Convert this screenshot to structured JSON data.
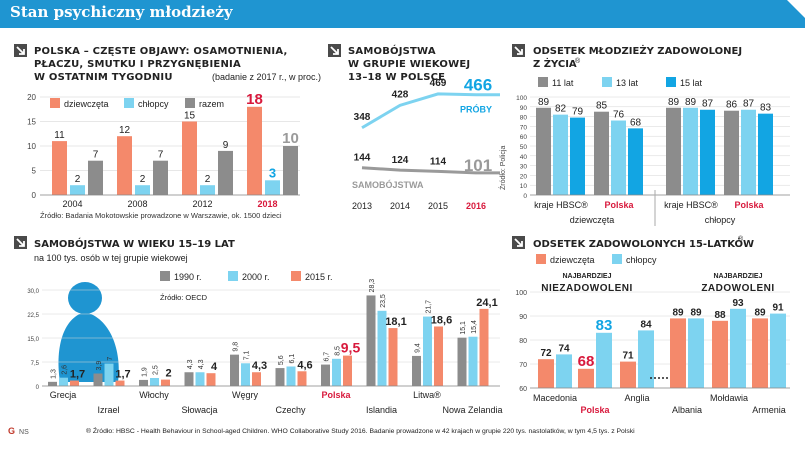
{
  "header": {
    "title": "Stan psychiczny młodzieży"
  },
  "colors": {
    "girls": "#f4896b",
    "boys": "#7dd3f0",
    "total": "#8c8c8c",
    "c11": "#8c8c8c",
    "c13": "#7dd3f0",
    "c15": "#12a5e3",
    "accent": "#d8193c",
    "blue": "#12a5e3"
  },
  "panel1": {
    "title_lines": [
      "Polska – częste objawy: osamotnienia,",
      "płaczu, smutku i przygnębienia",
      "w ostatnim tygodniu"
    ],
    "subtitle": "(badanie z 2017 r., w proc.)",
    "source": "Źródło: Badania Mokotowskie prowadzone w Warszawie, ok. 1500 dzieci",
    "chart_data": {
      "type": "bar",
      "categories": [
        "2004",
        "2008",
        "2012",
        "2018"
      ],
      "series": [
        {
          "name": "dziewczęta",
          "values": [
            11,
            12,
            15,
            18
          ]
        },
        {
          "name": "chłopcy",
          "values": [
            2,
            2,
            2,
            3
          ]
        },
        {
          "name": "razem",
          "values": [
            7,
            7,
            9,
            10
          ]
        }
      ],
      "ylim": [
        0,
        20
      ],
      "yticks": [
        "0",
        "5",
        "10",
        "15",
        "20"
      ],
      "grid": true,
      "legend": "top"
    }
  },
  "panel2": {
    "title_lines": [
      "Samobójstwa",
      "w grupie wiekowej",
      "13–18 w Polsce"
    ],
    "source": "Źródło: Policja",
    "chart_data": {
      "type": "line",
      "x": [
        "2013",
        "2014",
        "2015",
        "2016"
      ],
      "series": [
        {
          "name": "PRÓBY",
          "values": [
            348,
            428,
            469,
            466
          ]
        },
        {
          "name": "SAMOBÓJSTWA",
          "values": [
            144,
            124,
            114,
            101
          ]
        }
      ],
      "labels": [
        "348",
        "428",
        "469",
        "466",
        "144",
        "124",
        "114",
        "101"
      ]
    }
  },
  "panel3": {
    "title_lines": [
      "Odsetek młodzieży zadowolonej",
      "z życia"
    ],
    "title_mark": "®",
    "chart_data": {
      "type": "bar",
      "legend_entries": [
        "11 lat",
        "13 lat",
        "15 lat"
      ],
      "groups": [
        {
          "label": "kraje HBSC®",
          "values": [
            89,
            82,
            79
          ]
        },
        {
          "label": "Polska",
          "values": [
            85,
            76,
            68
          ]
        },
        {
          "label": "kraje HBSC®",
          "values": [
            89,
            89,
            87
          ]
        },
        {
          "label": "Polska",
          "values": [
            86,
            87,
            83
          ]
        }
      ],
      "sections": [
        "dziewczęta",
        "chłopcy"
      ],
      "ylim": [
        0,
        100
      ],
      "yticks": [
        "0",
        "10",
        "20",
        "30",
        "40",
        "50",
        "60",
        "70",
        "80",
        "90",
        "100"
      ],
      "grid": true
    }
  },
  "panel4": {
    "title": "Samobójstwa w wieku 15–19 lat",
    "subtitle": "na 100 tys. osób w tej grupie wiekowej",
    "source": "Źródło: OECD",
    "chart_data": {
      "type": "bar",
      "categories": [
        "Grecja",
        "Izrael",
        "Włochy",
        "Słowacja",
        "Węgry",
        "Czechy",
        "Polska",
        "Islandia",
        "Litwa",
        "Nowa Zelandia"
      ],
      "category_marks": [
        "",
        "",
        "",
        "",
        "",
        "",
        "",
        "",
        "®",
        ""
      ],
      "series": [
        {
          "name": "1990 r.",
          "values": [
            1.3,
            3.9,
            1.9,
            4.3,
            9.8,
            5.6,
            6.7,
            28.3,
            9.4,
            15.1
          ]
        },
        {
          "name": "2000 r.",
          "values": [
            2.6,
            7.0,
            2.5,
            4.3,
            7.1,
            6.1,
            8.5,
            23.5,
            21.7,
            15.4
          ]
        },
        {
          "name": "2015 r.",
          "values": [
            1.7,
            1.7,
            2.0,
            4.0,
            4.3,
            4.6,
            9.5,
            18.1,
            18.6,
            24.1
          ]
        }
      ],
      "ylim": [
        0,
        30
      ],
      "yticks": [
        "0",
        "7,5",
        "15,0",
        "22,5",
        "30,0"
      ],
      "grid": true,
      "legend": "top"
    }
  },
  "panel5": {
    "title": "Odsetek zadowolonych 15-latków",
    "title_mark": "®",
    "left_caption": [
      "NAJBARDZIEJ",
      "NIEZADOWOLENI"
    ],
    "right_caption": [
      "NAJBARDZIEJ",
      "ZADOWOLENI"
    ],
    "chart_data": {
      "type": "bar",
      "categories": [
        "Macedonia",
        "Polska",
        "Anglia",
        "Albania",
        "Mołdawia",
        "Armenia"
      ],
      "series": [
        {
          "name": "dziewczęta",
          "values": [
            72,
            68,
            71,
            89,
            88,
            89
          ]
        },
        {
          "name": "chłopcy",
          "values": [
            74,
            83,
            84,
            89,
            93,
            91
          ]
        }
      ],
      "ylim": [
        60,
        100
      ],
      "yticks": [
        "60",
        "70",
        "80",
        "90",
        "100"
      ],
      "grid": true,
      "legend": "top-left"
    }
  },
  "footer": {
    "note": "® Źródło: HBSC - Health Behaviour in School-aged Children. WHO Collaborative Study 2016. Badanie prowadzone w 42 krajach w grupie 220 tys. nastolatków, w tym 4,5 tys. z Polski",
    "logo": "G",
    "logo_sub": "NS"
  }
}
